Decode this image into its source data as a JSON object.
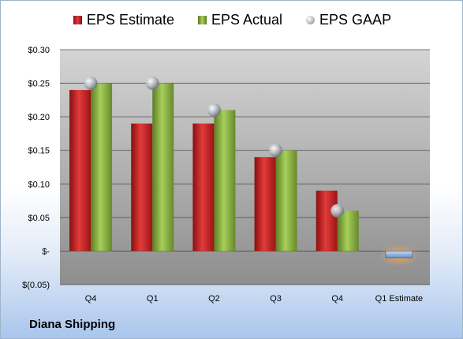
{
  "company": "Diana Shipping",
  "legend": {
    "estimate": "EPS Estimate",
    "actual": "EPS Actual",
    "gaap": "EPS GAAP"
  },
  "colors": {
    "estimate": "#c8282a",
    "actual": "#8db545",
    "gaap": "#b9bec6",
    "negative_estimate": "#8bb4e0"
  },
  "chart_data": {
    "type": "bar",
    "categories": [
      "Q4",
      "Q1",
      "Q2",
      "Q3",
      "Q4",
      "Q1 Estimate"
    ],
    "series": [
      {
        "name": "EPS Estimate",
        "values": [
          0.24,
          0.19,
          0.19,
          0.14,
          0.09,
          -0.01
        ]
      },
      {
        "name": "EPS Actual",
        "values": [
          0.25,
          0.25,
          0.21,
          0.15,
          0.06,
          null
        ]
      },
      {
        "name": "EPS GAAP",
        "values": [
          0.25,
          0.25,
          0.21,
          0.15,
          0.06,
          null
        ]
      }
    ],
    "ylim": [
      -0.05,
      0.3
    ],
    "yticks": [
      0.3,
      0.25,
      0.2,
      0.15,
      0.1,
      0.05,
      0,
      -0.05
    ],
    "ytick_labels": [
      "$0.30",
      "$0.25",
      "$0.20",
      "$0.15",
      "$0.10",
      "$0.05",
      "$-",
      "$(0.05)"
    ],
    "grid": true,
    "legend_position": "top"
  }
}
